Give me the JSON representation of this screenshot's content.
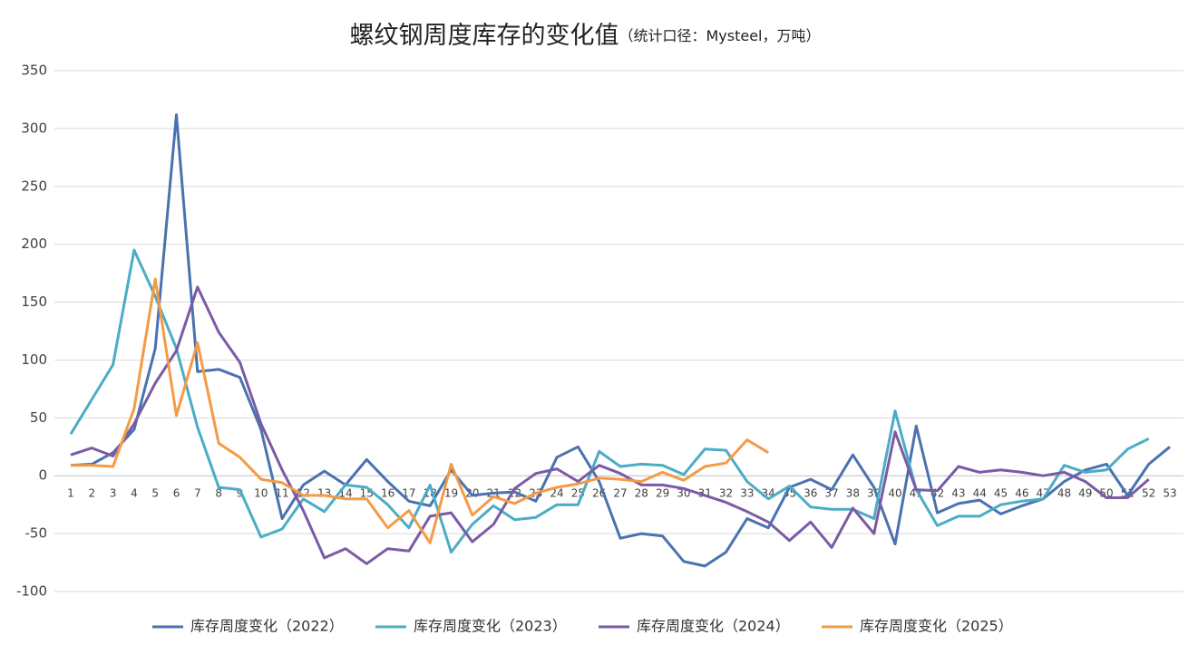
{
  "chart_data": {
    "type": "line",
    "title": "螺纹钢周度库存的变化值",
    "subtitle": "（统计口径：Mysteel，万吨）",
    "categories": [
      "1",
      "2",
      "3",
      "4",
      "5",
      "6",
      "7",
      "8",
      "9",
      "10",
      "11",
      "12",
      "13",
      "14",
      "15",
      "16",
      "17",
      "18",
      "19",
      "20",
      "21",
      "22",
      "23",
      "24",
      "25",
      "26",
      "27",
      "28",
      "29",
      "30",
      "31",
      "32",
      "33",
      "34",
      "35",
      "36",
      "37",
      "38",
      "39",
      "40",
      "41",
      "42",
      "43",
      "44",
      "45",
      "46",
      "47",
      "48",
      "49",
      "50",
      "51",
      "52",
      "53"
    ],
    "series": [
      {
        "name": "库存周度变化（2022）",
        "color": "#4a72b0",
        "values": [
          9,
          10,
          20,
          40,
          110,
          312,
          90,
          92,
          85,
          40,
          -37,
          -8,
          4,
          -8,
          14,
          -5,
          -22,
          -26,
          5,
          -17,
          -15,
          -14,
          -22,
          16,
          25,
          -5,
          -54,
          -50,
          -52,
          -74,
          -78,
          -66,
          -37,
          -45,
          -10,
          -3,
          -12,
          18,
          -10,
          -59,
          43,
          -32,
          -24,
          -21,
          -33,
          -26,
          -20,
          -5,
          5,
          10,
          -17,
          10,
          25
        ]
      },
      {
        "name": "库存周度变化（2023）",
        "color": "#4bacc6",
        "values": [
          36,
          66,
          96,
          195,
          155,
          110,
          42,
          -10,
          -12,
          -53,
          -46,
          -20,
          -31,
          -8,
          -10,
          -25,
          -45,
          -8,
          -66,
          -42,
          -26,
          -38,
          -36,
          -25,
          -25,
          21,
          8,
          10,
          9,
          1,
          23,
          22,
          -5,
          -20,
          -9,
          -27,
          -29,
          -29,
          -37,
          56,
          -12,
          -43,
          -35,
          -35,
          -25,
          -22,
          -20,
          9,
          3,
          5,
          23,
          32,
          null
        ]
      },
      {
        "name": "库存周度变化（2024）",
        "color": "#7b5aa6",
        "values": [
          18,
          24,
          17,
          45,
          80,
          108,
          163,
          124,
          98,
          45,
          5,
          -30,
          -71,
          -63,
          -76,
          -63,
          -65,
          -35,
          -32,
          -57,
          -42,
          -11,
          2,
          6,
          -5,
          9,
          2,
          -8,
          -8,
          -11,
          -17,
          -23,
          -31,
          -40,
          -56,
          -40,
          -62,
          -28,
          -50,
          38,
          -12,
          -13,
          8,
          3,
          5,
          3,
          0,
          3,
          -5,
          -19,
          -19,
          -3,
          null
        ]
      },
      {
        "name": "库存周度变化（2025）",
        "color": "#f59a45",
        "values": [
          9,
          9,
          8,
          58,
          170,
          52,
          115,
          28,
          16,
          -3,
          -6,
          -17,
          -17,
          -20,
          -20,
          -45,
          -30,
          -58,
          10,
          -34,
          -18,
          -24,
          -15,
          -10,
          -7,
          -2,
          -3,
          -5,
          3,
          -4,
          8,
          11,
          31,
          20,
          null,
          null,
          null,
          null,
          null,
          null,
          null,
          null,
          null,
          null,
          null,
          null,
          null,
          null,
          null,
          null,
          null,
          null,
          null
        ]
      }
    ],
    "ylim": [
      -100,
      350
    ],
    "yticks": [
      -100,
      -50,
      0,
      50,
      100,
      150,
      200,
      250,
      300,
      350
    ],
    "grid": true,
    "legend": "bottom"
  }
}
